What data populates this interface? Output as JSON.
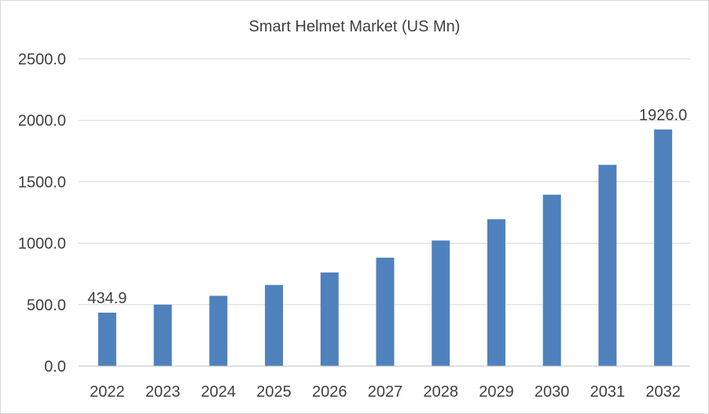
{
  "chart_data": {
    "type": "bar",
    "title": "Smart Helmet Market (US Mn)",
    "xlabel": "",
    "ylabel": "",
    "categories": [
      "2022",
      "2023",
      "2024",
      "2025",
      "2026",
      "2027",
      "2028",
      "2029",
      "2030",
      "2031",
      "2032"
    ],
    "values": [
      434.9,
      500,
      572,
      660,
      762,
      882,
      1022,
      1195,
      1395,
      1638,
      1926.0
    ],
    "data_labels": [
      {
        "category": "2022",
        "text": "434.9"
      },
      {
        "category": "2032",
        "text": "1926.0"
      }
    ],
    "ylim": [
      0,
      2500
    ],
    "yticks": [
      "0.0",
      "500.0",
      "1000.0",
      "1500.0",
      "2000.0",
      "2500.0"
    ],
    "grid": true,
    "bar_color": "#4f81bd"
  }
}
